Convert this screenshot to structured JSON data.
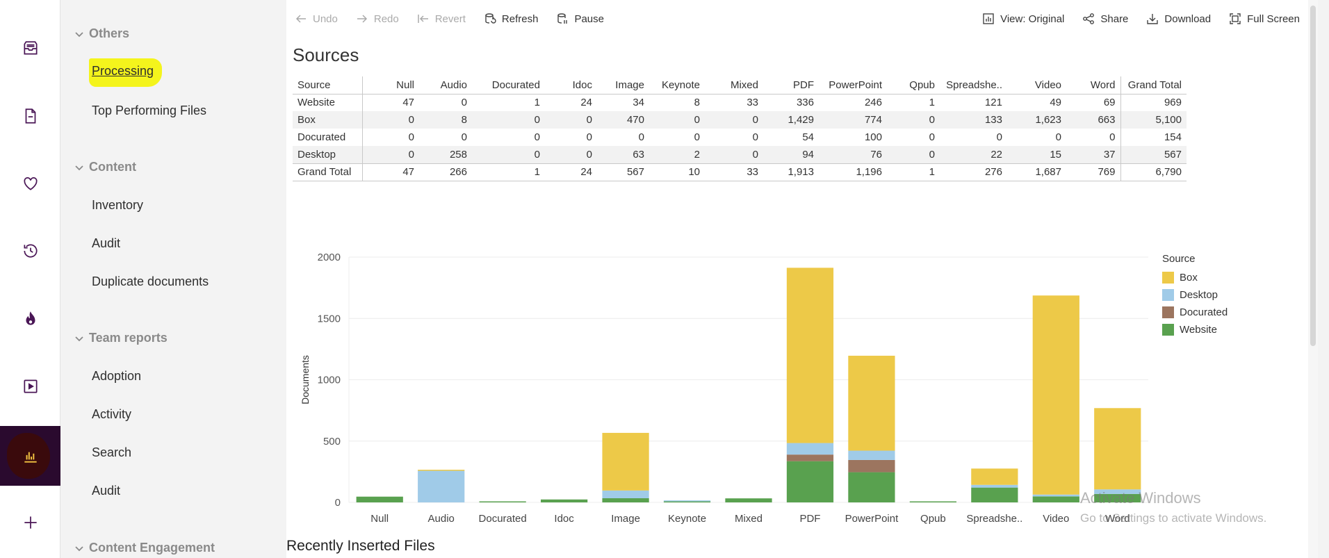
{
  "rail": {
    "items": [
      {
        "icon": "inbox-icon"
      },
      {
        "icon": "document-icon"
      },
      {
        "icon": "heart-icon"
      },
      {
        "icon": "history-icon"
      },
      {
        "icon": "flame-icon"
      },
      {
        "icon": "play-box-icon"
      },
      {
        "icon": "bar-chart-icon",
        "active": true
      },
      {
        "icon": "plus-icon"
      }
    ]
  },
  "nav": {
    "others": {
      "label": "Others",
      "items": [
        "Processing",
        "Top Performing Files"
      ]
    },
    "content": {
      "label": "Content",
      "items": [
        "Inventory",
        "Audit",
        "Duplicate documents"
      ]
    },
    "team_reports": {
      "label": "Team reports",
      "items": [
        "Adoption",
        "Activity",
        "Search",
        "Audit"
      ]
    },
    "content_engagement": {
      "label": "Content Engagement"
    }
  },
  "toolbar": {
    "undo": "Undo",
    "redo": "Redo",
    "revert": "Revert",
    "refresh": "Refresh",
    "pause": "Pause",
    "view": "View: Original",
    "share": "Share",
    "download": "Download",
    "full_screen": "Full Screen"
  },
  "sources": {
    "title": "Sources",
    "columns": [
      "Source",
      "Null",
      "Audio",
      "Docurated",
      "Idoc",
      "Image",
      "Keynote",
      "Mixed",
      "PDF",
      "PowerPoint",
      "Qpub",
      "Spreadshe..",
      "Video",
      "Word",
      "Grand Total"
    ],
    "rows": [
      [
        "Website",
        "47",
        "0",
        "1",
        "24",
        "34",
        "8",
        "33",
        "336",
        "246",
        "1",
        "121",
        "49",
        "69",
        "969"
      ],
      [
        "Box",
        "0",
        "8",
        "0",
        "0",
        "470",
        "0",
        "0",
        "1,429",
        "774",
        "0",
        "133",
        "1,623",
        "663",
        "5,100"
      ],
      [
        "Docurated",
        "0",
        "0",
        "0",
        "0",
        "0",
        "0",
        "0",
        "54",
        "100",
        "0",
        "0",
        "0",
        "0",
        "154"
      ],
      [
        "Desktop",
        "0",
        "258",
        "0",
        "0",
        "63",
        "2",
        "0",
        "94",
        "76",
        "0",
        "22",
        "15",
        "37",
        "567"
      ],
      [
        "Grand Total",
        "47",
        "266",
        "1",
        "24",
        "567",
        "10",
        "33",
        "1,913",
        "1,196",
        "1",
        "276",
        "1,687",
        "769",
        "6,790"
      ]
    ]
  },
  "chart_data": {
    "type": "bar",
    "stacked": true,
    "categories": [
      "Null",
      "Audio",
      "Docurated",
      "Idoc",
      "Image",
      "Keynote",
      "Mixed",
      "PDF",
      "PowerPoint",
      "Qpub",
      "Spreadshe..",
      "Video",
      "Word"
    ],
    "series": [
      {
        "name": "Website",
        "color": "#59a14f",
        "values": [
          47,
          0,
          1,
          24,
          34,
          8,
          33,
          336,
          246,
          1,
          121,
          49,
          69
        ]
      },
      {
        "name": "Docurated",
        "color": "#9c755f",
        "values": [
          0,
          0,
          0,
          0,
          0,
          0,
          0,
          54,
          100,
          0,
          0,
          0,
          0
        ]
      },
      {
        "name": "Desktop",
        "color": "#a0cbe8",
        "values": [
          0,
          258,
          0,
          0,
          63,
          2,
          0,
          94,
          76,
          0,
          22,
          15,
          37
        ]
      },
      {
        "name": "Box",
        "color": "#edc948",
        "values": [
          0,
          8,
          0,
          0,
          470,
          0,
          0,
          1429,
          774,
          0,
          133,
          1623,
          663
        ]
      }
    ],
    "legend_title": "Source",
    "legend_order": [
      "Box",
      "Desktop",
      "Docurated",
      "Website"
    ],
    "ylabel": "Documents",
    "yticks": [
      0,
      500,
      1000,
      1500,
      2000
    ],
    "ylim": [
      0,
      2000
    ],
    "grid": true,
    "legend": "right"
  },
  "recent": {
    "title": "Recently Inserted Files"
  },
  "watermark": {
    "line1": "Activate Windows",
    "line2": "Go to Settings to activate Windows."
  }
}
